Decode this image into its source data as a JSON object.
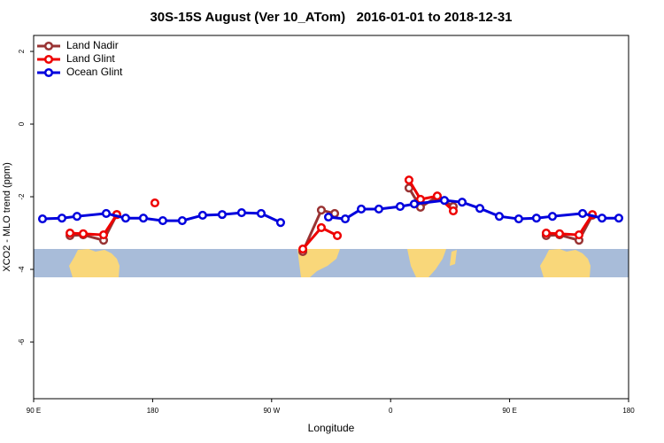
{
  "chart_data": {
    "type": "line",
    "title": "30S-15S August (Ver 10_ATom)   2016-01-01 to 2018-12-31",
    "x_label": "Longitude",
    "y_label": "XCO2 - MLO trend (ppm)",
    "xlim": [
      90,
      540
    ],
    "ylim": [
      -7.56,
      2.44
    ],
    "xticks": [
      {
        "value": 90,
        "label": "90 E"
      },
      {
        "value": 180,
        "label": "180"
      },
      {
        "value": 270,
        "label": "90 W"
      },
      {
        "value": 360,
        "label": "0"
      },
      {
        "value": 450,
        "label": "90 E"
      },
      {
        "value": 540,
        "label": "180"
      }
    ],
    "yticks": [
      2,
      0,
      -2,
      -4,
      -6
    ],
    "legend": "top-left",
    "series": [
      {
        "name": "Land Nadir",
        "color": "#993333",
        "x": [
          117.5,
          127.5,
          142.9,
          152.9,
          null,
          293.6,
          307.6,
          317.7,
          null,
          373.9,
          382.6,
          395.3,
          407.4,
          null,
          477.7,
          487.8,
          502.5,
          512.6
        ],
        "values": [
          -3.07,
          -3.05,
          -3.2,
          -2.49,
          null,
          -3.51,
          -2.37,
          -2.46,
          null,
          -1.76,
          -2.29,
          -2.0,
          -2.27,
          null,
          -3.07,
          -3.05,
          -3.2,
          -2.51
        ]
      },
      {
        "name": "Land Glint",
        "color": "#ee0000",
        "x": [
          117.5,
          127.5,
          142.9,
          152.9,
          null,
          181.7,
          null,
          293.6,
          307.6,
          319.7,
          null,
          373.9,
          382.6,
          395.3,
          407.4,
          null,
          477.7,
          487.8,
          502.5,
          512.6
        ],
        "values": [
          -3.0,
          -3.02,
          -3.05,
          -2.49,
          null,
          -2.17,
          null,
          -3.44,
          -2.85,
          -3.07,
          null,
          -1.54,
          -2.07,
          -1.98,
          -2.39,
          null,
          -3.0,
          -3.02,
          -3.05,
          -2.49
        ]
      },
      {
        "name": "Ocean Glint",
        "color": "#0000dd",
        "x": [
          96.7,
          111.4,
          122.8,
          144.9,
          159.6,
          173,
          187.7,
          202.4,
          217.8,
          232.6,
          247.3,
          262.1,
          276.8,
          null,
          313,
          325.7,
          337.8,
          351.1,
          367.2,
          377.9,
          400.7,
          414.1,
          427.5,
          442.2,
          456.9,
          470.3,
          482.4,
          505.2,
          519.9,
          532.6
        ],
        "values": [
          -2.61,
          -2.59,
          -2.54,
          -2.46,
          -2.59,
          -2.59,
          -2.66,
          -2.66,
          -2.51,
          -2.49,
          -2.44,
          -2.46,
          -2.71,
          null,
          -2.56,
          -2.61,
          -2.34,
          -2.34,
          -2.27,
          -2.2,
          -2.1,
          -2.15,
          -2.32,
          -2.54,
          -2.61,
          -2.59,
          -2.54,
          -2.46,
          -2.59,
          -2.59
        ]
      }
    ]
  }
}
